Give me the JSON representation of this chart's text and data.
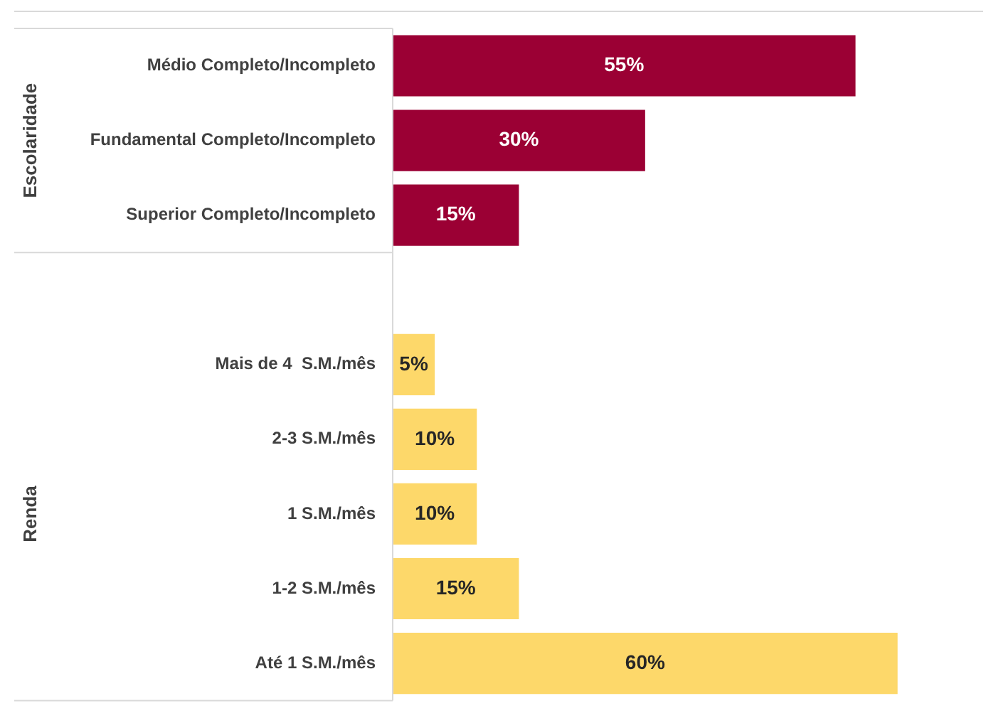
{
  "chart_data": {
    "type": "bar",
    "orientation": "horizontal",
    "categories": [
      "Médio Completo/Incompleto",
      "Fundamental Completo/Incompleto",
      "Superior Completo/Incompleto",
      null,
      "Mais de 4  S.M./mês",
      "2-3 S.M./mês",
      "1 S.M./mês",
      "1-2 S.M./mês",
      "Até 1 S.M./mês"
    ],
    "values": [
      55,
      30,
      15,
      null,
      5,
      10,
      10,
      15,
      60
    ],
    "colors": [
      "#9b0034",
      "#9b0034",
      "#9b0034",
      "#9b0034",
      "#fdd86a",
      "#fdd86a",
      "#fdd86a",
      "#fdd86a",
      "#fdd86a"
    ],
    "value_labels": [
      "55%",
      "30%",
      "15%",
      null,
      "5%",
      "10%",
      "10%",
      "15%",
      "60%"
    ],
    "xlim": [
      0,
      70
    ],
    "annotations": [
      "Escolaridade",
      "Renda"
    ],
    "tick_labels": "y",
    "grid": false,
    "legend": false
  }
}
